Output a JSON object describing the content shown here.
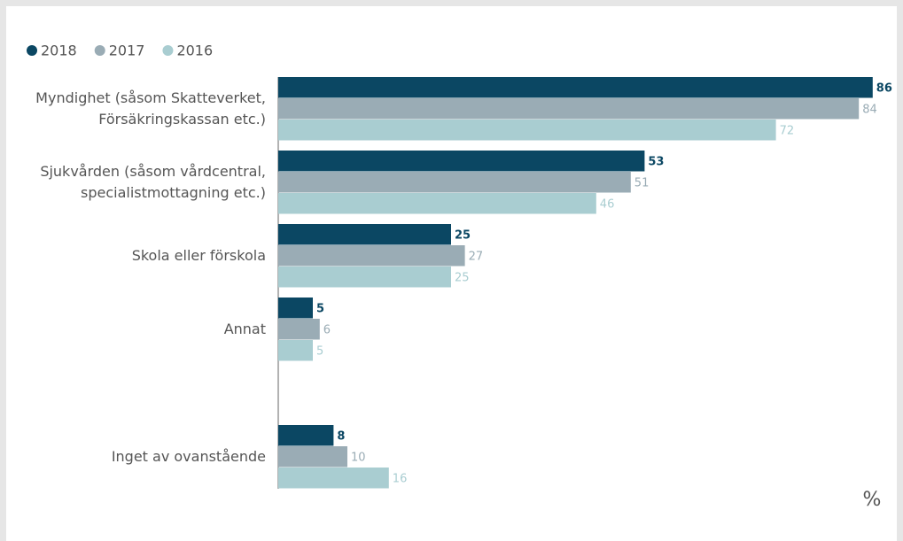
{
  "chart_data": {
    "type": "bar",
    "orientation": "horizontal",
    "categories": [
      "Myndighet (såsom Skatteverket, Försäkringskassan etc.)",
      "Sjukvården (såsom vårdcentral, specialistmottagning etc.)",
      "Skola eller förskola",
      "Annat",
      "Inget av ovanstående"
    ],
    "series": [
      {
        "name": "2018",
        "color": "#0b4763",
        "values": [
          86,
          53,
          25,
          5,
          8
        ]
      },
      {
        "name": "2017",
        "color": "#9aacb5",
        "values": [
          84,
          51,
          27,
          6,
          10
        ]
      },
      {
        "name": "2016",
        "color": "#a9cdd1",
        "values": [
          72,
          46,
          25,
          5,
          16
        ]
      }
    ],
    "xlim": [
      0,
      100
    ],
    "unit_label": "%",
    "legend": "top-left"
  }
}
